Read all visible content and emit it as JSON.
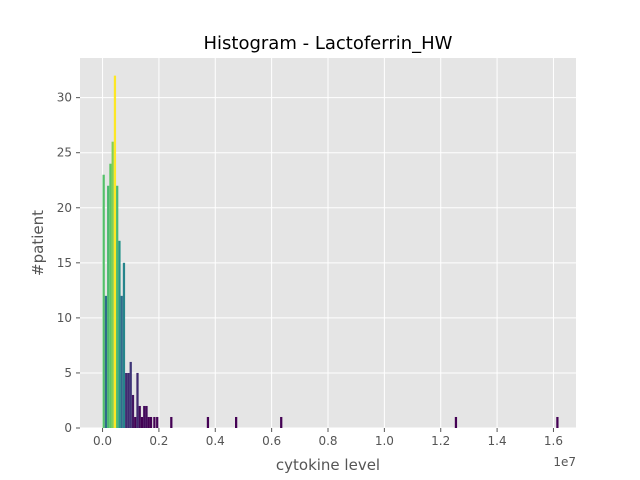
{
  "chart_data": {
    "type": "bar",
    "title": "Histogram - Lactoferrin_HW",
    "xlabel": "cytokine level",
    "ylabel": "#patient",
    "x_offset_label": "1e7",
    "xlim": [
      -800000,
      16800000
    ],
    "ylim": [
      0,
      33.6
    ],
    "x_ticks": [
      0,
      2000000,
      4000000,
      6000000,
      8000000,
      10000000,
      12000000,
      14000000,
      16000000
    ],
    "x_tick_labels": [
      "0.0",
      "0.2",
      "0.4",
      "0.6",
      "0.8",
      "1.0",
      "1.2",
      "1.4",
      "1.6"
    ],
    "y_ticks": [
      0,
      5,
      10,
      15,
      20,
      25,
      30
    ],
    "y_tick_labels": [
      "0",
      "5",
      "10",
      "15",
      "20",
      "25",
      "30"
    ],
    "grid": true,
    "bin_width": 80000,
    "bars": [
      {
        "x": 0,
        "value": 23
      },
      {
        "x": 80000,
        "value": 12
      },
      {
        "x": 160000,
        "value": 22
      },
      {
        "x": 240000,
        "value": 24
      },
      {
        "x": 320000,
        "value": 26
      },
      {
        "x": 400000,
        "value": 32
      },
      {
        "x": 480000,
        "value": 22
      },
      {
        "x": 560000,
        "value": 17
      },
      {
        "x": 640000,
        "value": 12
      },
      {
        "x": 720000,
        "value": 15
      },
      {
        "x": 800000,
        "value": 5
      },
      {
        "x": 880000,
        "value": 5
      },
      {
        "x": 960000,
        "value": 6
      },
      {
        "x": 1040000,
        "value": 3
      },
      {
        "x": 1120000,
        "value": 1
      },
      {
        "x": 1200000,
        "value": 5
      },
      {
        "x": 1280000,
        "value": 2
      },
      {
        "x": 1360000,
        "value": 1
      },
      {
        "x": 1440000,
        "value": 2
      },
      {
        "x": 1520000,
        "value": 2
      },
      {
        "x": 1600000,
        "value": 1
      },
      {
        "x": 1680000,
        "value": 1
      },
      {
        "x": 1800000,
        "value": 1
      },
      {
        "x": 1900000,
        "value": 1
      },
      {
        "x": 2400000,
        "value": 1
      },
      {
        "x": 3700000,
        "value": 1
      },
      {
        "x": 4700000,
        "value": 1
      },
      {
        "x": 6300000,
        "value": 1
      },
      {
        "x": 12500000,
        "value": 1
      },
      {
        "x": 16100000,
        "value": 1
      }
    ]
  }
}
